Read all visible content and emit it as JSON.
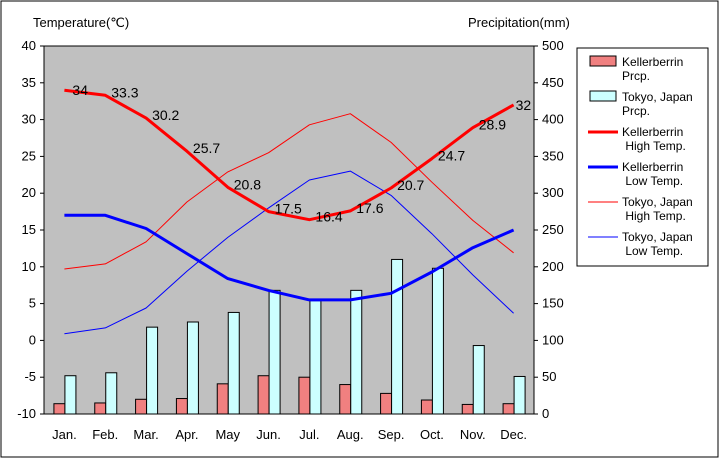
{
  "chart_data": {
    "type": "bar+line",
    "categories": [
      "Jan.",
      "Feb.",
      "Mar.",
      "Apr.",
      "May",
      "Jun.",
      "Jul.",
      "Aug.",
      "Sep.",
      "Oct.",
      "Nov.",
      "Dec."
    ],
    "left_axis": {
      "label": "Temperature(℃)",
      "ylim": [
        -10,
        40
      ],
      "ticks": [
        "40",
        "35",
        "30",
        "25",
        "20",
        "15",
        "10",
        "5",
        "0",
        "-5",
        "-10"
      ]
    },
    "right_axis": {
      "label": "Precipitation(mm)",
      "ylim": [
        0,
        500
      ],
      "ticks": [
        "500",
        "450",
        "400",
        "350",
        "300",
        "250",
        "200",
        "150",
        "100",
        "50",
        "0"
      ]
    },
    "grid": false,
    "legend_position": "right",
    "bar_series": [
      {
        "name": "Kellerberrin Prcp.",
        "color": "#f08080",
        "values": [
          14,
          15,
          20,
          21,
          41,
          52,
          50,
          40,
          28,
          19,
          13,
          14
        ]
      },
      {
        "name": "Tokyo, Japan Prcp.",
        "color": "#ccffff",
        "values": [
          52,
          56,
          118,
          125,
          138,
          168,
          154,
          168,
          210,
          198,
          93,
          51
        ]
      }
    ],
    "line_series": [
      {
        "name": "Kellerberrin High Temp.",
        "color": "#ff0000",
        "width": 3,
        "values": [
          34,
          33.3,
          30.2,
          25.7,
          20.8,
          17.5,
          16.4,
          17.6,
          20.7,
          24.7,
          28.9,
          32
        ],
        "labels": [
          "34",
          "33.3",
          "30.2",
          "25.7",
          "20.8",
          "17.5",
          "16.4",
          "17.6",
          "20.7",
          "24.7",
          "28.9",
          "32"
        ]
      },
      {
        "name": "Kellerberrin Low Temp.",
        "color": "#0000ff",
        "width": 3,
        "values": [
          17,
          17,
          15.2,
          11.8,
          8.4,
          6.8,
          5.5,
          5.5,
          6.4,
          9.3,
          12.6,
          15
        ]
      },
      {
        "name": "Tokyo, Japan High Temp.",
        "color": "#ff0000",
        "width": 1,
        "values": [
          9.7,
          10.4,
          13.4,
          18.8,
          22.9,
          25.5,
          29.3,
          30.8,
          26.9,
          21.5,
          16.3,
          11.9
        ]
      },
      {
        "name": "Tokyo, Japan Low Temp.",
        "color": "#0000ff",
        "width": 1,
        "values": [
          0.9,
          1.7,
          4.4,
          9.4,
          14.0,
          18.0,
          21.8,
          23.0,
          19.7,
          14.5,
          8.9,
          3.7
        ]
      }
    ],
    "legend": [
      {
        "label": "Kellerberrin\nPrcp.",
        "kind": "box",
        "color": "#f08080"
      },
      {
        "label": "Tokyo, Japan\nPrcp.",
        "kind": "box",
        "color": "#ccffff"
      },
      {
        "label": "Kellerberrin\n High Temp.",
        "kind": "line",
        "color": "#ff0000",
        "width": 3
      },
      {
        "label": "Kellerberrin\n Low Temp.",
        "kind": "line",
        "color": "#0000ff",
        "width": 3
      },
      {
        "label": "Tokyo, Japan\n High Temp.",
        "kind": "line",
        "color": "#ff0000",
        "width": 1
      },
      {
        "label": "Tokyo, Japan\n Low Temp.",
        "kind": "line",
        "color": "#0000ff",
        "width": 1
      }
    ],
    "colors": {
      "plot_background": "#c0c0c0",
      "outer_border": "#000000"
    }
  }
}
